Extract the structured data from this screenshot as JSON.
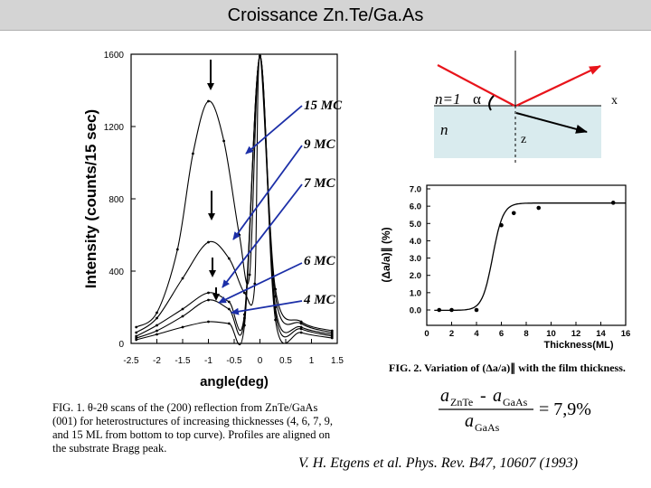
{
  "slide": {
    "title": "Croissance Zn.Te/Ga.As",
    "reference": "V. H. Etgens et al. Phys. Rev. B47, 10607 (1993)"
  },
  "fig1": {
    "ylabel": "Intensity (counts/15 sec)",
    "xlabel": "angle(deg)",
    "yticks": [
      "1600",
      "1200",
      "800",
      "400",
      "0"
    ],
    "xticks": [
      "-2.5",
      "-2",
      "-1.5",
      "-1",
      "-0.5",
      "0",
      "0.5",
      "1",
      "1.5"
    ],
    "thickness_labels": [
      "15 MC",
      "9 MC",
      "7 MC",
      "6 MC",
      "4 MC"
    ],
    "caption_lines": [
      "FIG. 1.  θ-2θ scans of the (200) reflection from ZnTe/GaAs",
      "(001) for heterostructures of increasing thicknesses (4, 6, 7, 9,",
      "and 15 ML from bottom to top curve). Profiles are aligned on",
      "the substrate Bragg peak."
    ]
  },
  "fig2": {
    "ylabel": "(Δa/a)∥ (%)",
    "xlabel": "Thickness(ML)",
    "yticks": [
      "7.0",
      "6.0",
      "5.0",
      "4.0",
      "3.0",
      "2.0",
      "1.0",
      "0.0"
    ],
    "xticks": [
      "0",
      "2",
      "4",
      "6",
      "8",
      "10",
      "12",
      "14",
      "16"
    ],
    "caption": "FIG. 2.  Variation of (Δa/a)∥ with the film thickness."
  },
  "schematic": {
    "n1": "n=1",
    "alpha": "α",
    "n": "n",
    "x": "x",
    "z": "z"
  },
  "formula": {
    "a1": "a",
    "sub1": "ZnTe",
    "minus": "-",
    "a2": "a",
    "sub2": "GaAs",
    "a3": "a",
    "sub3": "GaAs",
    "result": "= 7,9%"
  },
  "chart_data": [
    {
      "type": "scatter",
      "title": "",
      "xlabel": "angle(deg)",
      "ylabel": "Intensity (counts/15 sec)",
      "xlim": [
        -2.5,
        1.5
      ],
      "ylim": [
        0,
        1600
      ],
      "series": [
        {
          "name": "15 MC",
          "x": [
            -2.4,
            -2.0,
            -1.6,
            -1.3,
            -1.0,
            -0.7,
            -0.4,
            -0.2,
            0.0,
            0.3,
            0.8,
            1.4
          ],
          "y": [
            90,
            170,
            520,
            1050,
            1340,
            1120,
            600,
            380,
            1600,
            300,
            120,
            70
          ]
        },
        {
          "name": "9 MC",
          "x": [
            -2.4,
            -2.0,
            -1.5,
            -1.0,
            -0.6,
            -0.3,
            -0.1,
            0.0,
            0.3,
            0.8,
            1.4
          ],
          "y": [
            60,
            140,
            360,
            560,
            470,
            280,
            330,
            1600,
            260,
            110,
            60
          ]
        },
        {
          "name": "7 MC",
          "x": [
            -2.4,
            -2.0,
            -1.5,
            -1.0,
            -0.6,
            -0.3,
            0.0,
            0.3,
            0.8,
            1.4
          ],
          "y": [
            40,
            100,
            190,
            280,
            230,
            160,
            1600,
            200,
            90,
            50
          ]
        },
        {
          "name": "6 MC",
          "x": [
            -2.4,
            -2.0,
            -1.5,
            -1.0,
            -0.6,
            -0.3,
            0.0,
            0.3,
            0.8,
            1.4
          ],
          "y": [
            30,
            70,
            150,
            240,
            190,
            140,
            1600,
            170,
            80,
            40
          ]
        },
        {
          "name": "4 MC",
          "x": [
            -2.4,
            -2.0,
            -1.5,
            -1.0,
            -0.6,
            -0.3,
            0.0,
            0.3,
            0.8,
            1.4
          ],
          "y": [
            20,
            50,
            90,
            120,
            110,
            100,
            1600,
            130,
            60,
            30
          ]
        }
      ]
    },
    {
      "type": "line",
      "title": "",
      "xlabel": "Thickness(ML)",
      "ylabel": "(Δa/a)∥ (%)",
      "xlim": [
        0,
        16
      ],
      "ylim": [
        0,
        7
      ],
      "x": [
        1,
        2,
        4,
        6,
        7,
        9,
        15
      ],
      "y": [
        0.0,
        0.0,
        0.0,
        4.9,
        5.6,
        5.9,
        6.2
      ]
    }
  ]
}
